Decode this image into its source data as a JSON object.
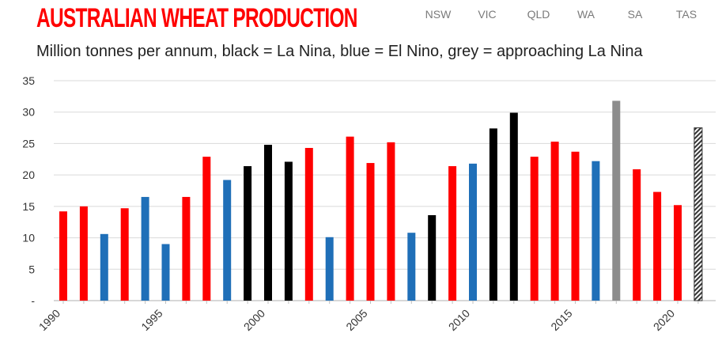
{
  "header": {
    "title": "AUSTRALIAN WHEAT PRODUCTION",
    "subtitle": "Million tonnes per annum, black = La Nina, blue = El Nino, grey = approaching La Nina",
    "tabs": [
      "NSW",
      "VIC",
      "QLD",
      "WA",
      "SA",
      "TAS"
    ]
  },
  "colors": {
    "normal": "#ff0000",
    "la_nina": "#000000",
    "el_nino": "#1f6fb8",
    "approaching_la_nina": "#8c8c8c",
    "forecast_hatch": "#333333",
    "grid": "#d9d9d9"
  },
  "chart_data": {
    "type": "bar",
    "ylim": [
      0,
      35
    ],
    "yticks": [
      "-",
      "5",
      "10",
      "15",
      "20",
      "25",
      "30",
      "35"
    ],
    "xtick_labels": [
      "1990",
      "1995",
      "2000",
      "2005",
      "2010",
      "2015",
      "2020"
    ],
    "grid": true,
    "categories": [
      1990,
      1991,
      1992,
      1993,
      1994,
      1995,
      1996,
      1997,
      1998,
      1999,
      2000,
      2001,
      2002,
      2003,
      2004,
      2005,
      2006,
      2007,
      2008,
      2009,
      2010,
      2011,
      2012,
      2013,
      2014,
      2015,
      2016,
      2017,
      2018,
      2019,
      2020,
      2021
    ],
    "values": [
      14.2,
      15.0,
      10.6,
      14.7,
      16.5,
      9.0,
      16.5,
      22.9,
      19.2,
      21.4,
      24.8,
      22.1,
      24.3,
      10.1,
      26.1,
      21.9,
      25.2,
      10.8,
      13.6,
      21.4,
      21.8,
      27.4,
      29.9,
      22.9,
      25.3,
      23.7,
      22.2,
      31.8,
      20.9,
      17.3,
      15.2,
      27.5
    ],
    "phase": [
      "normal",
      "normal",
      "el_nino",
      "normal",
      "el_nino",
      "el_nino",
      "normal",
      "normal",
      "el_nino",
      "la_nina",
      "la_nina",
      "la_nina",
      "normal",
      "el_nino",
      "normal",
      "normal",
      "normal",
      "el_nino",
      "la_nina",
      "normal",
      "el_nino",
      "la_nina",
      "la_nina",
      "normal",
      "normal",
      "normal",
      "el_nino",
      "approaching_la_nina",
      "normal",
      "normal",
      "normal",
      "forecast"
    ]
  }
}
